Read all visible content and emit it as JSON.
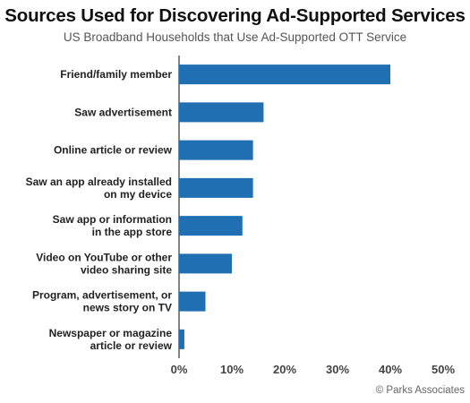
{
  "chart_data": {
    "type": "bar",
    "orientation": "horizontal",
    "title": "Sources Used for Discovering Ad-Supported Services",
    "subtitle": "US Broadband Households that Use Ad-Supported OTT Service",
    "categories": [
      [
        "Friend/family member"
      ],
      [
        "Saw advertisement"
      ],
      [
        "Online article or review"
      ],
      [
        "Saw an app already installed",
        "on my device"
      ],
      [
        "Saw app or information",
        "in the app store"
      ],
      [
        "Video on YouTube or other",
        "video sharing site"
      ],
      [
        "Program, advertisement, or",
        "news story on TV"
      ],
      [
        "Newspaper or magazine",
        "article or review"
      ]
    ],
    "values": [
      40,
      16,
      14,
      14,
      12,
      10,
      5,
      1
    ],
    "xlim": [
      0,
      50
    ],
    "xticks": [
      "0%",
      "10%",
      "20%",
      "30%",
      "40%",
      "50%"
    ],
    "grid": false,
    "bar_color": "#1f6fb2"
  },
  "credit": "© Parks Associates"
}
